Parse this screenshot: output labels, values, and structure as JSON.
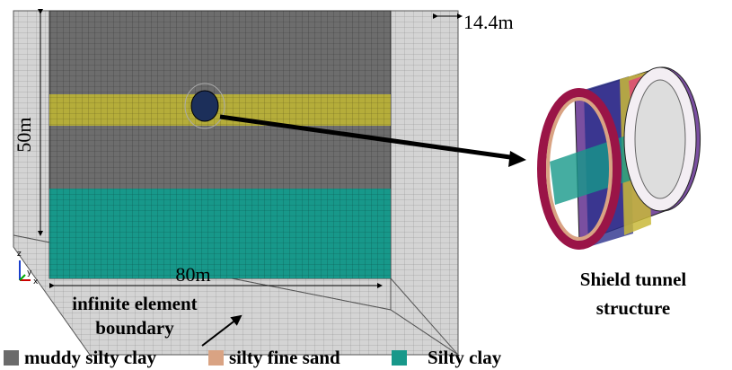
{
  "dimensions": {
    "depth": "14.4m",
    "height": "50m",
    "width": "80m"
  },
  "axes": {
    "z": "z",
    "y": "y",
    "x": "x"
  },
  "annotations": {
    "boundary": [
      "infinite element",
      "boundary"
    ],
    "tunnel": [
      "Shield tunnel",
      "structure"
    ]
  },
  "legend": [
    {
      "label": "muddy silty clay",
      "color": "#6b6b6b"
    },
    {
      "label": "silty fine sand",
      "color": "#d9a383"
    },
    {
      "label": "Silty clay",
      "color": "#17988a"
    }
  ]
}
